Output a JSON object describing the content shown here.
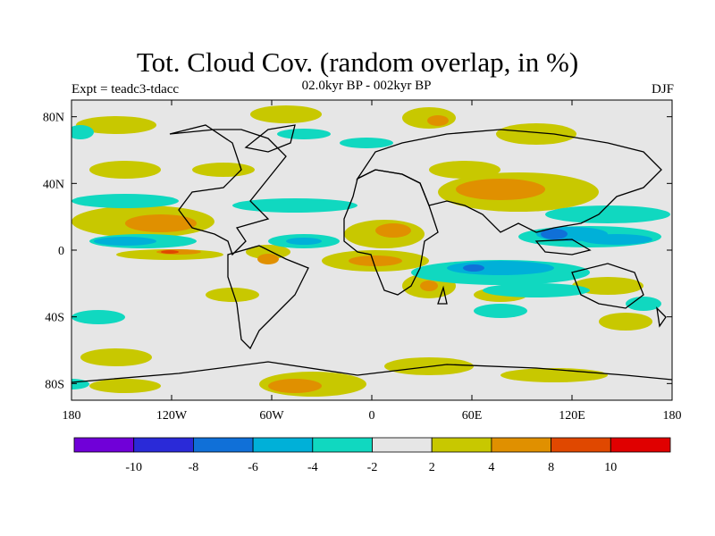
{
  "header": {
    "title": "Tot. Cloud Cov. (random overlap, in %)",
    "left": "Expt = teadc3-tdacc",
    "center": "02.0kyr BP - 002kyr BP",
    "right": "DJF"
  },
  "map": {
    "projection": "cylindrical-equidistant",
    "lon_range": [
      -180,
      180
    ],
    "lat_range": [
      -90,
      90
    ],
    "x_ticks": [
      {
        "value": -180,
        "label": "180"
      },
      {
        "value": -120,
        "label": "120W"
      },
      {
        "value": -60,
        "label": "60W"
      },
      {
        "value": 0,
        "label": "0"
      },
      {
        "value": 60,
        "label": "60E"
      },
      {
        "value": 120,
        "label": "120E"
      },
      {
        "value": 180,
        "label": "180"
      }
    ],
    "y_ticks": [
      {
        "value": 80,
        "label": "80N"
      },
      {
        "value": 40,
        "label": "40N"
      },
      {
        "value": 0,
        "label": "0"
      },
      {
        "value": -40,
        "label": "40S"
      },
      {
        "value": -80,
        "label": "80S"
      }
    ],
    "background_color": "#e6e6e6"
  },
  "colorbar": {
    "levels": [
      {
        "color": "#7000d8",
        "label": "-10"
      },
      {
        "color": "#2a2ad8",
        "label": "-8"
      },
      {
        "color": "#1070d8",
        "label": "-6"
      },
      {
        "color": "#00b0d8",
        "label": "-4"
      },
      {
        "color": "#10d8c0",
        "label": "-2"
      },
      {
        "color": "#e6e6e6",
        "label": "2"
      },
      {
        "color": "#c8c800",
        "label": "4"
      },
      {
        "color": "#e09000",
        "label": "8"
      },
      {
        "color": "#e04800",
        "label": "10"
      },
      {
        "color": "#e00000",
        "label": ""
      }
    ]
  }
}
